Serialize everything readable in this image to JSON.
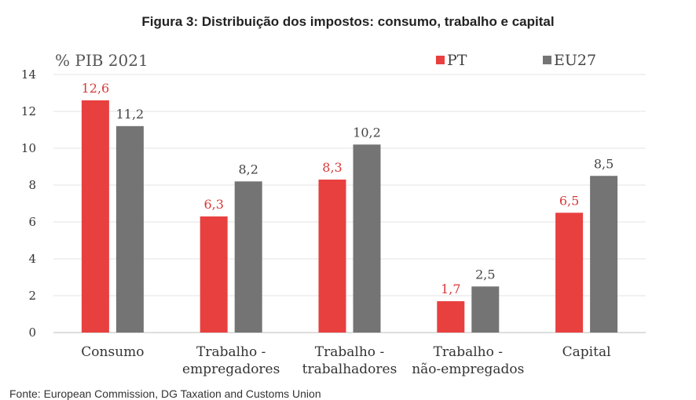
{
  "chart_data": {
    "type": "bar",
    "title": "Figura 3: Distribuição dos impostos: consumo, trabalho e capital",
    "unit_label": "% PIB 2021",
    "categories": [
      [
        "Consumo"
      ],
      [
        "Trabalho -",
        "empregadores"
      ],
      [
        "Trabalho -",
        "trabalhadores"
      ],
      [
        "Trabalho -",
        "não-empregados"
      ],
      [
        "Capital"
      ]
    ],
    "series": [
      {
        "name": "PT",
        "color": "#e8403f",
        "label_color": "#d83a3a",
        "values": [
          12.6,
          6.3,
          8.3,
          1.7,
          6.5
        ],
        "labels": [
          "12,6",
          "6,3",
          "8,3",
          "1,7",
          "6,5"
        ]
      },
      {
        "name": "EU27",
        "color": "#747474",
        "label_color": "#444444",
        "values": [
          11.2,
          8.2,
          10.2,
          2.5,
          8.5
        ],
        "labels": [
          "11,2",
          "8,2",
          "10,2",
          "2,5",
          "8,5"
        ]
      }
    ],
    "ylim": [
      0,
      14
    ],
    "yticks": [
      0,
      2,
      4,
      6,
      8,
      10,
      12,
      14
    ],
    "grid": true,
    "legend": "top-right"
  },
  "source_text": "Fonte: European Commission, DG Taxation and Customs Union"
}
